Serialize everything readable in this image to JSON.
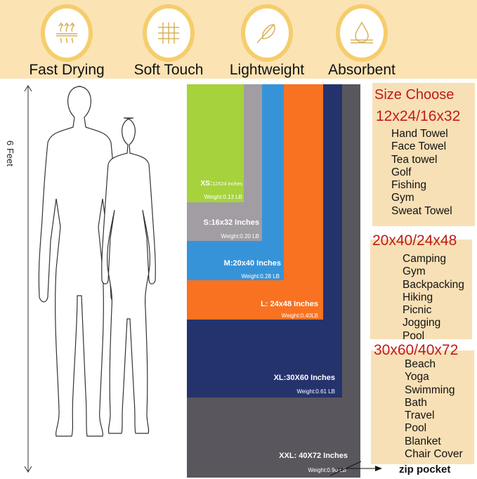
{
  "features": [
    {
      "label": "Fast Drying",
      "icon": "heat-waves-icon"
    },
    {
      "label": "Soft Touch",
      "icon": "fabric-weave-icon"
    },
    {
      "label": "Lightweight",
      "icon": "feather-icon"
    },
    {
      "label": "Absorbent",
      "icon": "water-drop-icon"
    }
  ],
  "height_label": "6 Feet",
  "sizes": [
    {
      "name": "XS:",
      "dims": "12X24 Inches",
      "weight": "Weight:0.13 LB",
      "color": "#a6d23c"
    },
    {
      "name": "S:16x32 Inches",
      "weight": "Weight:0.20 LB",
      "color": "#a19da2"
    },
    {
      "name": "M:20x40 Inches",
      "weight": "Weight:0.28 LB",
      "color": "#3793d8"
    },
    {
      "name": "L: 24x48 Inches",
      "weight": "Weight:0.40LB",
      "color": "#f87222"
    },
    {
      "name": "XL:30X60 Inches",
      "weight": "Weight:0.61 LB",
      "color": "#25336d"
    },
    {
      "name": "XXL: 40X72 Inches",
      "weight": "Weight:0.90 LB",
      "color": "#5a565d"
    }
  ],
  "zip_pocket": "zip pocket",
  "size_choose": "Size Choose",
  "groups": [
    {
      "title": "12x24/16x32",
      "uses": [
        "Hand Towel",
        "Face Towel",
        "Tea towel",
        "Golf",
        "Fishing",
        "Gym",
        "Sweat Towel"
      ]
    },
    {
      "title": "20x40/24x48",
      "uses": [
        "Camping",
        "Gym",
        "Backpacking",
        "Hiking",
        "Picnic",
        "Jogging",
        "Pool"
      ]
    },
    {
      "title": "30x60/40x72",
      "uses": [
        "Beach",
        "Yoga",
        "Swimming",
        "Bath",
        "Travel",
        "Pool",
        "Blanket",
        "Chair Cover"
      ]
    }
  ]
}
